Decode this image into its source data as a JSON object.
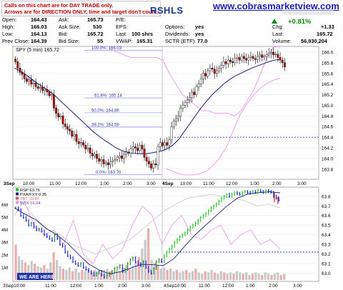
{
  "header": {
    "notice_line1": "Calls on this chart are for DAY TRADE only.",
    "notice_line2": "Arrows are for DIRECTION ONLY, time and target don't count.",
    "symbol_partial": "RSHLS",
    "website": "www.cobrasmarketview.com"
  },
  "quote": {
    "open_label": "Open:",
    "open_value": "164.43",
    "high_label": "High:",
    "high_value": "166.03",
    "low_label": "Low:",
    "low_value": "164.13",
    "prev_close_label": "Prev Close:",
    "prev_close_value": "164.39",
    "ask_label": "Ask:",
    "ask_value": "165.73",
    "ask_size_label": "Ask Size:",
    "ask_size_value": "530",
    "bid_label": "Bid:",
    "bid_value": "165.72",
    "bid_size_label": "Bid Size:",
    "bid_size_value": "55",
    "pe_label": "P/E:",
    "pe_value": "",
    "eps_label": "EPS:",
    "eps_value": "",
    "last_label": "Last:",
    "last_value": "100 shrs",
    "vwap_label": "VWAP:",
    "vwap_value": "165.31",
    "options_label": "Options:",
    "options_value": "yes",
    "dividends_label": "Dividends:",
    "dividends_value": "yes",
    "sctr_label": "SCTR (ETF):",
    "sctr_value": "77.0",
    "chg_pct": "+0.81%",
    "chg_label": "Chg:",
    "chg_value": "+1.33",
    "last2_label": "Last:",
    "last2_value": "165.72",
    "volume_label": "Volume:",
    "volume_value": "56,930,204"
  },
  "colors": {
    "up_candle": "#ffffff",
    "down_candle": "#c00000",
    "ma_line": "#1a237e",
    "band_line": "#e898e8",
    "fib_line": "#7a7af0",
    "support_line": "#1a1aa0",
    "rsp_up": "#1ac41a",
    "rsp_down": "#1a1ae0",
    "volume_bar": "#bfbfbf"
  },
  "chart_data": [
    {
      "type": "candlestick",
      "title": "SPY (5 min) 165.72",
      "y_ticks": [
        "166.0",
        "165.8",
        "165.6",
        "165.4",
        "165.2",
        "165.0",
        "164.8",
        "164.6",
        "164.4",
        "164.2",
        "164.0",
        "163.8"
      ],
      "ylim": [
        163.65,
        166.08
      ],
      "x_ticks": [
        "3Sep",
        "10:00",
        "11:00",
        "12:00",
        "1:00",
        "2:00",
        "3:00",
        "4Sep",
        "10:00",
        "11:00",
        "12:00",
        "1:00",
        "2:00",
        "3:00"
      ],
      "fib_levels": [
        {
          "label": "100.0%: 166.03",
          "value": 166.03
        },
        {
          "label": "61.8%: 165.14",
          "value": 165.14
        },
        {
          "label": "50.0%: 164.86",
          "value": 164.86
        },
        {
          "label": "38.2%: 164.59",
          "value": 164.59
        },
        {
          "label": "0.0%: 163.70",
          "value": 163.7
        }
      ],
      "support_level": 164.4,
      "closes": [
        165.82,
        165.7,
        165.62,
        165.58,
        165.5,
        165.45,
        165.48,
        165.4,
        165.42,
        165.35,
        165.32,
        165.34,
        165.28,
        165.3,
        165.25,
        165.18,
        165.2,
        164.95,
        164.85,
        164.78,
        164.8,
        164.65,
        164.6,
        164.55,
        164.52,
        164.42,
        164.45,
        164.32,
        164.28,
        164.3,
        164.25,
        164.18,
        164.2,
        164.1,
        164.05,
        164.08,
        164.0,
        163.95,
        163.98,
        163.9,
        163.92,
        163.88,
        163.94,
        163.96,
        163.98,
        164.02,
        164.05,
        164.0,
        164.08,
        164.12,
        164.1,
        164.18,
        164.22,
        164.2,
        164.15,
        164.25,
        164.18,
        164.02,
        163.95,
        163.9,
        163.82,
        163.9,
        163.88,
        164.22,
        164.3,
        164.24,
        164.3,
        164.25,
        164.35,
        164.6,
        164.7,
        164.75,
        164.8,
        164.95,
        165.0,
        165.05,
        165.1,
        165.15,
        165.25,
        165.2,
        165.35,
        165.4,
        165.5,
        165.6,
        165.55,
        165.65,
        165.7,
        165.68,
        165.6,
        165.65,
        165.7,
        165.75,
        165.82,
        165.78,
        165.85,
        165.82,
        165.8,
        165.88,
        165.9,
        165.85,
        165.92,
        165.88,
        165.85,
        165.9,
        165.92,
        165.88,
        165.86,
        165.92,
        165.95,
        165.9,
        165.92,
        165.95,
        165.98,
        166.0,
        165.95,
        165.96,
        165.9,
        165.85,
        165.8,
        165.72
      ],
      "ma_values": [
        165.7,
        165.65,
        165.58,
        165.5,
        165.42,
        165.35,
        165.28,
        165.2,
        165.1,
        165.0,
        164.9,
        164.8,
        164.7,
        164.6,
        164.5,
        164.42,
        164.34,
        164.27,
        164.2,
        164.15,
        164.12,
        164.1,
        164.09,
        164.09,
        164.1,
        164.12,
        164.14,
        164.18,
        164.25,
        164.35,
        164.5,
        164.65,
        164.8,
        164.95,
        165.08,
        165.2,
        165.3,
        165.4,
        165.48,
        165.55,
        165.6,
        165.65,
        165.7,
        165.74,
        165.78,
        165.82,
        165.85,
        165.86
      ],
      "band_values": [
        166.05,
        166.0,
        165.95,
        165.9,
        165.9,
        165.9,
        165.9,
        165.9,
        165.85,
        165.6,
        165.4,
        165.2,
        165.1,
        165.0,
        164.9,
        164.9,
        164.85,
        164.85,
        164.85,
        164.8,
        164.9,
        165.1,
        165.3,
        165.6,
        165.9,
        166.1,
        166.1
      ],
      "ma2_values": [
        164.0,
        163.95,
        163.9,
        163.88,
        163.88,
        163.9,
        163.95,
        164.05,
        164.2,
        164.4,
        164.7,
        165.0,
        165.2,
        165.38,
        165.5,
        165.6,
        165.66,
        165.7
      ]
    },
    {
      "type": "line",
      "title": "RSP 63.76",
      "legend": [
        "RSP 63.76",
        "PXA/FXY 0.35",
        "TBT 70.87",
        "$VIX 16.04"
      ],
      "y_ticks": [
        "63.8",
        "63.7",
        "63.6",
        "63.5",
        "63.4",
        "63.3",
        "63.2",
        "63.1",
        "63.0"
      ],
      "ylim": [
        62.93,
        63.88
      ],
      "volume_ticks": [
        "6M",
        "5M",
        "4M",
        "3M",
        "2M",
        "1M"
      ],
      "x_ticks": [
        "3Sep10:00",
        "11:00",
        "12:00",
        "1:00",
        "2:00",
        "3:00",
        "4Sep10:00",
        "11:00",
        "12:00",
        "1:00",
        "2:00",
        "3:00"
      ],
      "support_level": 63.22,
      "rsp_values": [
        63.68,
        63.66,
        63.6,
        63.58,
        63.55,
        63.5,
        63.52,
        63.48,
        63.45,
        63.46,
        63.44,
        63.4,
        63.38,
        63.36,
        63.34,
        63.4,
        63.36,
        63.3,
        63.28,
        63.22,
        63.18,
        63.16,
        63.12,
        63.1,
        63.08,
        63.1,
        63.06,
        63.04,
        63.02,
        63.0,
        62.98,
        63.0,
        63.02,
        62.98,
        62.96,
        62.98,
        63.0,
        63.02,
        63.05,
        63.06,
        63.08,
        63.02,
        63.04,
        63.1,
        63.14,
        63.16,
        63.12,
        63.1,
        63.08,
        63.12,
        63.06,
        63.02,
        63.0,
        63.05,
        63.12,
        63.14,
        63.12,
        63.18,
        63.22,
        63.25,
        63.28,
        63.32,
        63.35,
        63.38,
        63.4,
        63.42,
        63.45,
        63.48,
        63.5,
        63.52,
        63.55,
        63.58,
        63.6,
        63.62,
        63.65,
        63.68,
        63.7,
        63.72,
        63.75,
        63.78,
        63.8,
        63.82,
        63.8,
        63.82,
        63.84,
        63.83,
        63.82,
        63.84,
        63.85,
        63.84,
        63.83,
        63.85,
        63.84,
        63.86,
        63.85,
        63.84,
        63.86,
        63.85,
        63.84,
        63.8,
        63.78,
        63.76
      ],
      "volumes_m": [
        2.8,
        1.9,
        1.6,
        1.4,
        1.2,
        1.5,
        1.3,
        1.1,
        1.0,
        1.2,
        0.9,
        1.4,
        2.2,
        1.6,
        1.1,
        0.9,
        0.8,
        1.0,
        0.7,
        0.9,
        0.6,
        0.8,
        0.7,
        0.9,
        0.6,
        0.8,
        0.7,
        0.6,
        0.8,
        0.9,
        0.7,
        0.6,
        0.8,
        0.7,
        1.0,
        1.2,
        0.9,
        1.1,
        1.4,
        1.8,
        2.5,
        3.2,
        4.1,
        1.6,
        1.4,
        1.2,
        0.9,
        1.0,
        0.8,
        0.9,
        0.7,
        0.8,
        0.6,
        0.7,
        0.8,
        0.6,
        0.7,
        0.9,
        0.6,
        0.5,
        0.7,
        0.6,
        0.8,
        0.6,
        0.5,
        0.7,
        0.6,
        0.5,
        0.6,
        0.5,
        0.7,
        0.6,
        0.5,
        0.6,
        0.4,
        0.5,
        0.6,
        0.5,
        0.4,
        0.6,
        0.5,
        0.4,
        0.5,
        0.6,
        0.4,
        0.5
      ]
    }
  ],
  "callout": {
    "label": "WE ARE HERE!"
  }
}
